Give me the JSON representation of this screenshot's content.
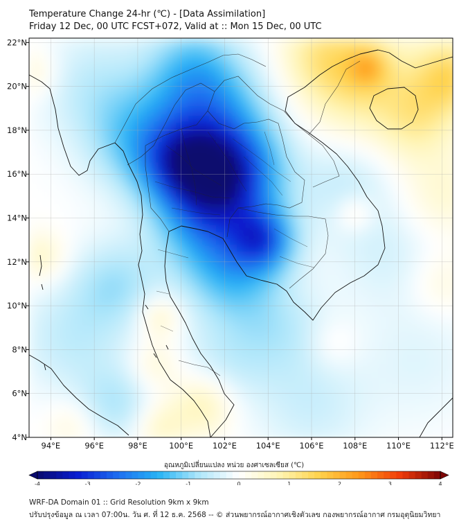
{
  "title_line1": "Temperature Change 24-hr (℃) - [Data Assimilation]",
  "title_line2": "Friday 12 Dec, 00 UTC FCST+072, Valid at :: Mon 15 Dec, 00 UTC",
  "map": {
    "lon_range": [
      93,
      112.5
    ],
    "lat_range": [
      4,
      22.2
    ],
    "lon_ticks": [
      {
        "value": 94,
        "label": "94°E"
      },
      {
        "value": 96,
        "label": "96°E"
      },
      {
        "value": 98,
        "label": "98°E"
      },
      {
        "value": 100,
        "label": "100°E"
      },
      {
        "value": 102,
        "label": "102°E"
      },
      {
        "value": 104,
        "label": "104°E"
      },
      {
        "value": 106,
        "label": "106°E"
      },
      {
        "value": 108,
        "label": "108°E"
      },
      {
        "value": 110,
        "label": "110°E"
      },
      {
        "value": 112,
        "label": "112°E"
      }
    ],
    "lat_ticks": [
      {
        "value": 4,
        "label": "4°N"
      },
      {
        "value": 6,
        "label": "6°N"
      },
      {
        "value": 8,
        "label": "8°N"
      },
      {
        "value": 10,
        "label": "10°N"
      },
      {
        "value": 12,
        "label": "12°N"
      },
      {
        "value": 14,
        "label": "14°N"
      },
      {
        "value": 16,
        "label": "16°N"
      },
      {
        "value": 18,
        "label": "18°N"
      },
      {
        "value": 20,
        "label": "20°N"
      },
      {
        "value": 22,
        "label": "22°N"
      }
    ]
  },
  "colorbar": {
    "label": "อุณหภูมิเปลี่ยนแปลง หน่วย องศาเซลเซียส (℃)",
    "min": -4,
    "max": 4,
    "ticks": [
      {
        "value": -4,
        "label": "-4"
      },
      {
        "value": -3,
        "label": "-3"
      },
      {
        "value": -2,
        "label": "-2"
      },
      {
        "value": -1,
        "label": "-1"
      },
      {
        "value": 0,
        "label": "0"
      },
      {
        "value": 1,
        "label": "1"
      },
      {
        "value": 2,
        "label": "2"
      },
      {
        "value": 3,
        "label": "3"
      },
      {
        "value": 4,
        "label": "4"
      }
    ],
    "colors": [
      "#0a0a6e",
      "#0a1ed2",
      "#1e6ef0",
      "#28b4f5",
      "#aee6fa",
      "#ffffff",
      "#fff5b4",
      "#ffd24b",
      "#ff9619",
      "#f03c0a",
      "#7d0505"
    ]
  },
  "temperature_field": [
    {
      "lon": 102.3,
      "lat": 16.0,
      "value": -2.8,
      "spread": 1.6
    },
    {
      "lon": 100.0,
      "lat": 16.4,
      "value": -2.0,
      "spread": 1.3
    },
    {
      "lon": 103.8,
      "lat": 13.0,
      "value": -2.1,
      "spread": 1.0
    },
    {
      "lon": 101.0,
      "lat": 14.0,
      "value": -1.6,
      "spread": 1.6
    },
    {
      "lon": 101.2,
      "lat": 18.8,
      "value": -1.7,
      "spread": 1.8
    },
    {
      "lon": 102.3,
      "lat": 11.5,
      "value": -1.3,
      "spread": 1.5
    },
    {
      "lon": 98.0,
      "lat": 17.5,
      "value": -1.1,
      "spread": 1.6
    },
    {
      "lon": 100.5,
      "lat": 21.0,
      "value": -0.9,
      "spread": 1.4
    },
    {
      "lon": 97.0,
      "lat": 11.0,
      "value": -0.8,
      "spread": 1.4
    },
    {
      "lon": 96.0,
      "lat": 20.0,
      "value": -0.6,
      "spread": 1.8
    },
    {
      "lon": 95.0,
      "lat": 8.5,
      "value": -0.6,
      "spread": 1.8
    },
    {
      "lon": 104.5,
      "lat": 9.0,
      "value": -0.6,
      "spread": 1.5
    },
    {
      "lon": 107.5,
      "lat": 15.5,
      "value": -0.5,
      "spread": 1.5
    },
    {
      "lon": 109.5,
      "lat": 12.5,
      "value": -0.4,
      "spread": 1.8
    },
    {
      "lon": 97.0,
      "lat": 5.5,
      "value": -0.7,
      "spread": 1.2
    },
    {
      "lon": 102.0,
      "lat": 7.5,
      "value": -0.5,
      "spread": 1.5
    },
    {
      "lon": 106.0,
      "lat": 5.5,
      "value": -0.5,
      "spread": 1.8
    },
    {
      "lon": 111.0,
      "lat": 7.5,
      "value": -0.3,
      "spread": 2.0
    },
    {
      "lon": 93.6,
      "lat": 12.2,
      "value": 0.6,
      "spread": 0.8
    },
    {
      "lon": 93.2,
      "lat": 20.6,
      "value": 0.5,
      "spread": 0.8
    },
    {
      "lon": 99.0,
      "lat": 9.5,
      "value": 0.7,
      "spread": 0.7
    },
    {
      "lon": 98.8,
      "lat": 7.3,
      "value": 0.5,
      "spread": 0.8
    },
    {
      "lon": 101.0,
      "lat": 5.5,
      "value": 0.8,
      "spread": 1.0
    },
    {
      "lon": 99.0,
      "lat": 4.5,
      "value": 0.6,
      "spread": 0.8
    },
    {
      "lon": 95.0,
      "lat": 4.6,
      "value": 0.4,
      "spread": 0.8
    },
    {
      "lon": 108.0,
      "lat": 20.5,
      "value": 1.3,
      "spread": 1.7
    },
    {
      "lon": 108.6,
      "lat": 20.9,
      "value": 1.0,
      "spread": 0.6
    },
    {
      "lon": 112.4,
      "lat": 20.5,
      "value": 1.4,
      "spread": 1.2
    },
    {
      "lon": 110.8,
      "lat": 18.5,
      "value": 0.9,
      "spread": 1.3
    },
    {
      "lon": 106.2,
      "lat": 21.5,
      "value": 0.6,
      "spread": 1.2
    },
    {
      "lon": 108.0,
      "lat": 14.2,
      "value": 0.6,
      "spread": 0.6
    },
    {
      "lon": 112.0,
      "lat": 15.0,
      "value": 0.5,
      "spread": 1.4
    },
    {
      "lon": 112.0,
      "lat": 11.0,
      "value": 0.4,
      "spread": 1.0
    },
    {
      "lon": 107.0,
      "lat": 8.2,
      "value": 0.3,
      "spread": 0.8
    }
  ],
  "footer_line1": "WRF-DA Domain 01 :: Grid Resolution 9km x 9km",
  "footer_line2": "ปรับปรุงข้อมูล ณ เวลา 07:00น. วัน ศ. ที่ 12 ธ.ค. 2568 -- © ส่วนพยากรณ์อากาศเชิงตัวเลข กองพยากรณ์อากาศ กรมอุตุนิยมวิทยา"
}
